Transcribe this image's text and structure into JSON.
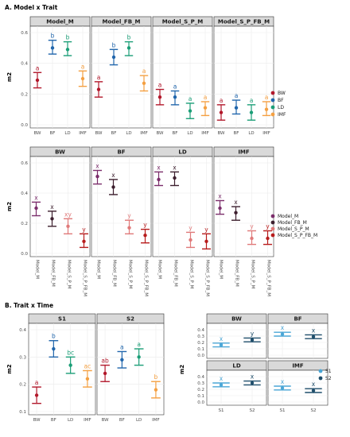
{
  "chart_data": [
    {
      "id": "A1",
      "type": "errorbar",
      "section_title": "A. Model x Trait",
      "ylabel": "m2",
      "ylim": [
        0.0,
        0.6
      ],
      "yticks": [
        "0.0",
        "0.2",
        "0.4",
        "0.6"
      ],
      "categories": [
        "BW",
        "BF",
        "LD",
        "IMF"
      ],
      "panels": [
        {
          "title": "Model_M",
          "points": [
            {
              "x": "BW",
              "y": 0.29,
              "lo": 0.24,
              "hi": 0.34,
              "label": "a",
              "color": "#b2182b"
            },
            {
              "x": "BF",
              "y": 0.5,
              "lo": 0.46,
              "hi": 0.55,
              "label": "b",
              "color": "#2166ac"
            },
            {
              "x": "LD",
              "y": 0.49,
              "lo": 0.45,
              "hi": 0.54,
              "label": "b",
              "color": "#1b9e77"
            },
            {
              "x": "IMF",
              "y": 0.3,
              "lo": 0.25,
              "hi": 0.35,
              "label": "a",
              "color": "#f4a042"
            }
          ]
        },
        {
          "title": "Model_FB_M",
          "points": [
            {
              "x": "BW",
              "y": 0.23,
              "lo": 0.18,
              "hi": 0.28,
              "label": "a",
              "color": "#b2182b"
            },
            {
              "x": "BF",
              "y": 0.44,
              "lo": 0.39,
              "hi": 0.49,
              "label": "b",
              "color": "#2166ac"
            },
            {
              "x": "LD",
              "y": 0.5,
              "lo": 0.45,
              "hi": 0.54,
              "label": "b",
              "color": "#1b9e77"
            },
            {
              "x": "IMF",
              "y": 0.27,
              "lo": 0.22,
              "hi": 0.32,
              "label": "a",
              "color": "#f4a042"
            }
          ]
        },
        {
          "title": "Model_S_P_M",
          "points": [
            {
              "x": "BW",
              "y": 0.18,
              "lo": 0.13,
              "hi": 0.23,
              "label": "a",
              "color": "#b2182b"
            },
            {
              "x": "BF",
              "y": 0.18,
              "lo": 0.13,
              "hi": 0.22,
              "label": "a",
              "color": "#2166ac"
            },
            {
              "x": "LD",
              "y": 0.09,
              "lo": 0.04,
              "hi": 0.14,
              "label": "a",
              "color": "#1b9e77"
            },
            {
              "x": "IMF",
              "y": 0.11,
              "lo": 0.06,
              "hi": 0.15,
              "label": "a",
              "color": "#f4a042"
            }
          ]
        },
        {
          "title": "Model_S_P_FB_M",
          "points": [
            {
              "x": "BW",
              "y": 0.08,
              "lo": 0.03,
              "hi": 0.13,
              "label": "a",
              "color": "#b2182b"
            },
            {
              "x": "BF",
              "y": 0.11,
              "lo": 0.07,
              "hi": 0.16,
              "label": "a",
              "color": "#2166ac"
            },
            {
              "x": "LD",
              "y": 0.08,
              "lo": 0.03,
              "hi": 0.13,
              "label": "a",
              "color": "#1b9e77"
            },
            {
              "x": "IMF",
              "y": 0.1,
              "lo": 0.06,
              "hi": 0.15,
              "label": "a",
              "color": "#f4a042"
            }
          ]
        }
      ],
      "legend": [
        {
          "name": "BW",
          "color": "#b2182b"
        },
        {
          "name": "BF",
          "color": "#2166ac"
        },
        {
          "name": "LD",
          "color": "#1b9e77"
        },
        {
          "name": "IMF",
          "color": "#f4a042"
        }
      ]
    },
    {
      "id": "A2",
      "type": "errorbar",
      "ylabel": "m2",
      "ylim": [
        0.0,
        0.6
      ],
      "yticks": [
        "0.0",
        "0.2",
        "0.4",
        "0.6"
      ],
      "categories": [
        "Model_M",
        "Model_FB_M",
        "Model_S_P_M",
        "Model_S_P_FB_M"
      ],
      "panels": [
        {
          "title": "BW",
          "points": [
            {
              "x": "Model_M",
              "y": 0.3,
              "lo": 0.25,
              "hi": 0.34,
              "label": "x",
              "color": "#7b2d6b"
            },
            {
              "x": "Model_FB_M",
              "y": 0.23,
              "lo": 0.18,
              "hi": 0.28,
              "label": "x",
              "color": "#3d1f2e"
            },
            {
              "x": "Model_S_P_M",
              "y": 0.18,
              "lo": 0.13,
              "hi": 0.23,
              "label": "xy",
              "color": "#e07a7a"
            },
            {
              "x": "Model_S_P_FB_M",
              "y": 0.08,
              "lo": 0.04,
              "hi": 0.13,
              "label": "y",
              "color": "#b71c1c"
            }
          ]
        },
        {
          "title": "BF",
          "points": [
            {
              "x": "Model_M",
              "y": 0.51,
              "lo": 0.46,
              "hi": 0.55,
              "label": "x",
              "color": "#7b2d6b"
            },
            {
              "x": "Model_FB_M",
              "y": 0.44,
              "lo": 0.39,
              "hi": 0.49,
              "label": "x",
              "color": "#3d1f2e"
            },
            {
              "x": "Model_S_P_M",
              "y": 0.17,
              "lo": 0.13,
              "hi": 0.22,
              "label": "y",
              "color": "#e07a7a"
            },
            {
              "x": "Model_S_P_FB_M",
              "y": 0.12,
              "lo": 0.07,
              "hi": 0.16,
              "label": "y",
              "color": "#b71c1c"
            }
          ]
        },
        {
          "title": "LD",
          "points": [
            {
              "x": "Model_M",
              "y": 0.49,
              "lo": 0.45,
              "hi": 0.54,
              "label": "x",
              "color": "#7b2d6b"
            },
            {
              "x": "Model_FB_M",
              "y": 0.5,
              "lo": 0.45,
              "hi": 0.54,
              "label": "x",
              "color": "#3d1f2e"
            },
            {
              "x": "Model_S_P_M",
              "y": 0.09,
              "lo": 0.04,
              "hi": 0.14,
              "label": "y",
              "color": "#e07a7a"
            },
            {
              "x": "Model_S_P_FB_M",
              "y": 0.08,
              "lo": 0.03,
              "hi": 0.13,
              "label": "y",
              "color": "#b71c1c"
            }
          ]
        },
        {
          "title": "IMF",
          "points": [
            {
              "x": "Model_M",
              "y": 0.3,
              "lo": 0.26,
              "hi": 0.35,
              "label": "x",
              "color": "#7b2d6b"
            },
            {
              "x": "Model_FB_M",
              "y": 0.27,
              "lo": 0.22,
              "hi": 0.31,
              "label": "x",
              "color": "#3d1f2e"
            },
            {
              "x": "Model_S_P_M",
              "y": 0.1,
              "lo": 0.06,
              "hi": 0.15,
              "label": "y",
              "color": "#e07a7a"
            },
            {
              "x": "Model_S_P_FB_M",
              "y": 0.1,
              "lo": 0.06,
              "hi": 0.15,
              "label": "y",
              "color": "#b71c1c"
            }
          ]
        }
      ],
      "legend": [
        {
          "name": "Model_M",
          "color": "#7b2d6b"
        },
        {
          "name": "Model_FB_M",
          "color": "#3d1f2e"
        },
        {
          "name": "Model_S_P_M",
          "color": "#e07a7a"
        },
        {
          "name": "Model_S_P_FB_M",
          "color": "#b71c1c"
        }
      ]
    },
    {
      "id": "B1",
      "type": "errorbar",
      "section_title": "B. Trait x Time",
      "ylabel": "m2",
      "ylim": [
        0.1,
        0.4
      ],
      "yticks": [
        "0.1",
        "0.2",
        "0.3",
        "0.4"
      ],
      "categories": [
        "BW",
        "BF",
        "LD",
        "IMF"
      ],
      "panels": [
        {
          "title": "S1",
          "points": [
            {
              "x": "BW",
              "y": 0.16,
              "lo": 0.13,
              "hi": 0.19,
              "label": "a",
              "color": "#b2182b"
            },
            {
              "x": "BF",
              "y": 0.33,
              "lo": 0.3,
              "hi": 0.36,
              "label": "b",
              "color": "#2166ac"
            },
            {
              "x": "LD",
              "y": 0.27,
              "lo": 0.24,
              "hi": 0.3,
              "label": "bc",
              "color": "#1b9e77"
            },
            {
              "x": "IMF",
              "y": 0.22,
              "lo": 0.19,
              "hi": 0.25,
              "label": "ac",
              "color": "#f4a042"
            }
          ]
        },
        {
          "title": "S2",
          "points": [
            {
              "x": "BW",
              "y": 0.24,
              "lo": 0.21,
              "hi": 0.27,
              "label": "ab",
              "color": "#b2182b"
            },
            {
              "x": "BF",
              "y": 0.29,
              "lo": 0.26,
              "hi": 0.32,
              "label": "a",
              "color": "#2166ac"
            },
            {
              "x": "LD",
              "y": 0.3,
              "lo": 0.27,
              "hi": 0.33,
              "label": "a",
              "color": "#1b9e77"
            },
            {
              "x": "IMF",
              "y": 0.18,
              "lo": 0.15,
              "hi": 0.21,
              "label": "b",
              "color": "#f4a042"
            }
          ]
        }
      ]
    },
    {
      "id": "B2",
      "type": "errorbar",
      "ylabel": "m2",
      "ylim": [
        0.0,
        0.4
      ],
      "yticks": [
        "0.0",
        "0.1",
        "0.2",
        "0.3",
        "0.4"
      ],
      "categories": [
        "S1",
        "S2"
      ],
      "panels": [
        {
          "title": "BW",
          "points": [
            {
              "x": "S1",
              "y": 0.16,
              "lo": 0.13,
              "hi": 0.19,
              "label": "x",
              "color": "#4aa6d6"
            },
            {
              "x": "S2",
              "y": 0.24,
              "lo": 0.21,
              "hi": 0.27,
              "label": "y",
              "color": "#1f4e6b"
            }
          ]
        },
        {
          "title": "BF",
          "points": [
            {
              "x": "S1",
              "y": 0.33,
              "lo": 0.3,
              "hi": 0.36,
              "label": "x",
              "color": "#4aa6d6"
            },
            {
              "x": "S2",
              "y": 0.29,
              "lo": 0.26,
              "hi": 0.32,
              "label": "x",
              "color": "#1f4e6b"
            }
          ]
        },
        {
          "title": "LD",
          "points": [
            {
              "x": "S1",
              "y": 0.27,
              "lo": 0.24,
              "hi": 0.3,
              "label": "x",
              "color": "#4aa6d6"
            },
            {
              "x": "S2",
              "y": 0.3,
              "lo": 0.27,
              "hi": 0.33,
              "label": "x",
              "color": "#1f4e6b"
            }
          ]
        },
        {
          "title": "IMF",
          "points": [
            {
              "x": "S1",
              "y": 0.22,
              "lo": 0.19,
              "hi": 0.25,
              "label": "x",
              "color": "#4aa6d6"
            },
            {
              "x": "S2",
              "y": 0.18,
              "lo": 0.15,
              "hi": 0.21,
              "label": "x",
              "color": "#1f4e6b"
            }
          ]
        }
      ],
      "legend": [
        {
          "name": "S1",
          "color": "#4aa6d6"
        },
        {
          "name": "S2",
          "color": "#1f4e6b"
        }
      ]
    }
  ]
}
